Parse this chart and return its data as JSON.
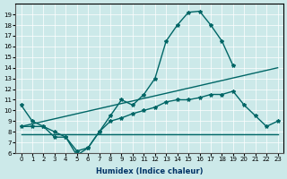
{
  "xlabel": "Humidex (Indice chaleur)",
  "bg_color": "#cce9e9",
  "grid_color": "#ffffff",
  "line_color": "#006666",
  "xlim": [
    -0.5,
    23.5
  ],
  "ylim": [
    6,
    20
  ],
  "series": [
    {
      "x": [
        0,
        1,
        2,
        3,
        4,
        5,
        6,
        7,
        8,
        9,
        10,
        11,
        12,
        13,
        14,
        15,
        16,
        17,
        18,
        19
      ],
      "y": [
        10.5,
        9.0,
        8.5,
        8.0,
        7.5,
        6.2,
        6.5,
        8.0,
        9.5,
        11.0,
        10.5,
        11.5,
        13.0,
        16.5,
        18.0,
        19.2,
        19.3,
        18.0,
        16.5,
        14.2
      ],
      "marker": true
    },
    {
      "x": [
        0,
        1,
        2,
        3,
        4,
        5,
        6,
        7,
        8,
        9,
        10,
        11,
        12,
        13,
        14,
        15,
        16,
        17,
        18,
        19,
        20,
        21,
        22,
        23
      ],
      "y": [
        8.5,
        8.5,
        8.5,
        7.5,
        7.5,
        5.8,
        6.5,
        8.0,
        9.0,
        9.3,
        9.7,
        10.0,
        10.3,
        10.8,
        11.0,
        11.0,
        11.2,
        11.5,
        11.5,
        11.8,
        10.5,
        9.5,
        8.5,
        9.0
      ],
      "marker": true
    },
    {
      "x": [
        0,
        23
      ],
      "y": [
        8.5,
        14.0
      ],
      "marker": false
    },
    {
      "x": [
        0,
        23
      ],
      "y": [
        7.8,
        7.8
      ],
      "marker": false
    }
  ]
}
